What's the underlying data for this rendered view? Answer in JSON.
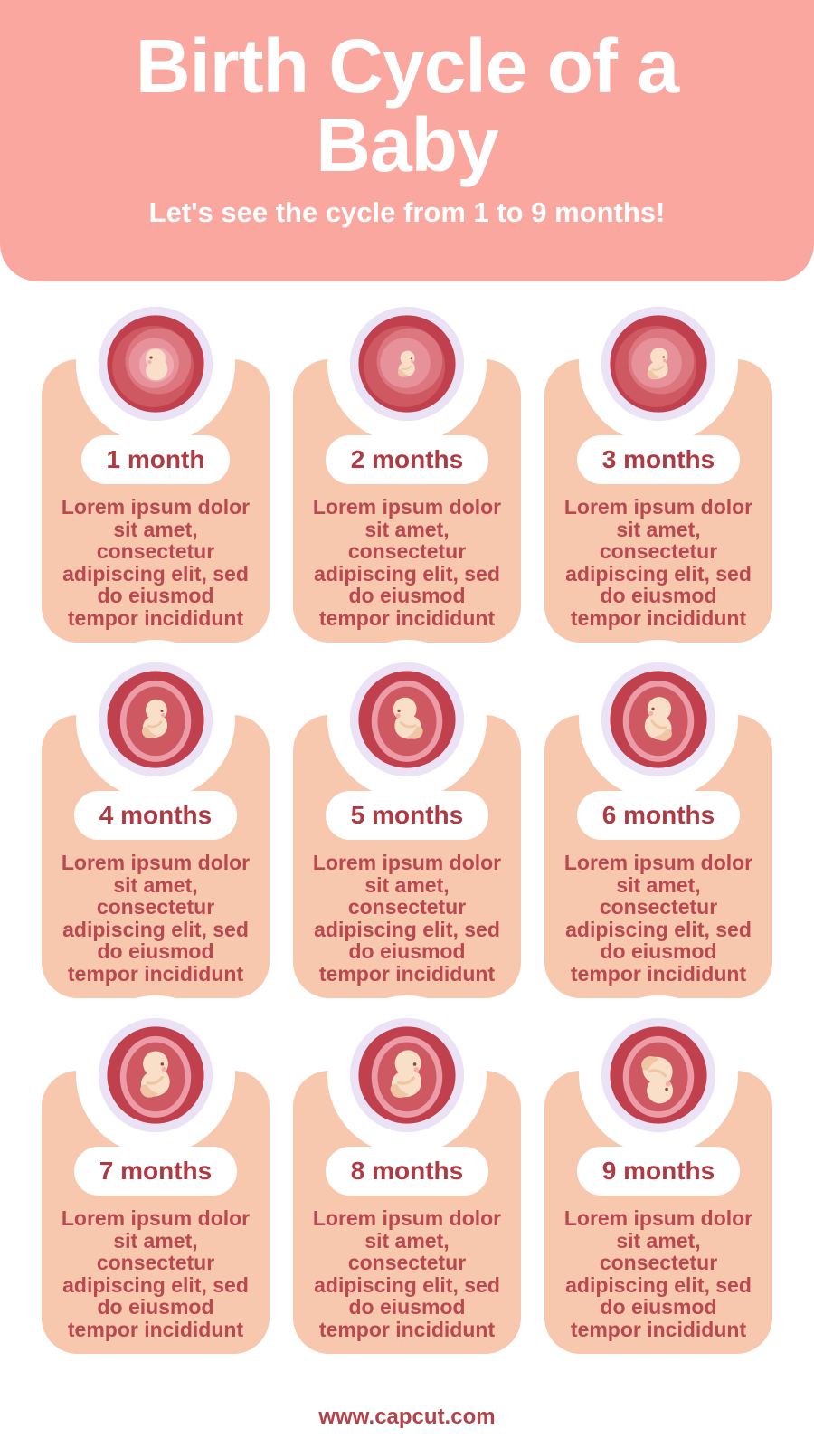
{
  "page": {
    "background_color": "#FFFFFF"
  },
  "header": {
    "title": "Birth Cycle of a Baby",
    "title_lines": [
      "Birth Cycle of a",
      "Baby"
    ],
    "subtitle": "Let's see the cycle from 1 to 9 months!",
    "background_color": "#FAA7A0",
    "text_color": "#FFFFFF"
  },
  "cards": [
    {
      "label": "1 month",
      "body_lines": [
        "Lorem ipsum dolor",
        "sit amet,",
        "consectetur",
        "adipiscing elit, sed",
        "do eiusmod",
        "tempor incididunt"
      ],
      "illustration": {
        "icon": "embryo-in-womb-icon",
        "fetus": "embryo",
        "womb": "swirl",
        "scale": 1.15,
        "flip": false,
        "rotate": 0
      }
    },
    {
      "label": "2 months",
      "body_lines": [
        "Lorem ipsum dolor",
        "sit amet,",
        "consectetur",
        "adipiscing elit, sed",
        "do eiusmod",
        "tempor incididunt"
      ],
      "illustration": {
        "icon": "fetus-in-womb-icon",
        "fetus": "baby",
        "womb": "swirl",
        "scale": 0.62,
        "flip": true,
        "rotate": 0
      }
    },
    {
      "label": "3 months",
      "body_lines": [
        "Lorem ipsum dolor",
        "sit amet,",
        "consectetur",
        "adipiscing elit, sed",
        "do eiusmod",
        "tempor incididunt"
      ],
      "illustration": {
        "icon": "fetus-in-womb-icon",
        "fetus": "baby",
        "womb": "swirl",
        "scale": 0.75,
        "flip": true,
        "rotate": 0
      }
    },
    {
      "label": "4 months",
      "body_lines": [
        "Lorem ipsum dolor",
        "sit amet,",
        "consectetur",
        "adipiscing elit, sed",
        "do eiusmod",
        "tempor incididunt"
      ],
      "illustration": {
        "icon": "fetus-in-womb-icon",
        "fetus": "baby",
        "womb": "sac",
        "scale": 0.92,
        "flip": true,
        "rotate": 0
      }
    },
    {
      "label": "5 months",
      "body_lines": [
        "Lorem ipsum dolor",
        "sit amet,",
        "consectetur",
        "adipiscing elit, sed",
        "do eiusmod",
        "tempor incididunt"
      ],
      "illustration": {
        "icon": "fetus-in-womb-icon",
        "fetus": "baby",
        "womb": "sac",
        "scale": 1.0,
        "flip": false,
        "rotate": -6
      }
    },
    {
      "label": "6 months",
      "body_lines": [
        "Lorem ipsum dolor",
        "sit amet,",
        "consectetur",
        "adipiscing elit, sed",
        "do eiusmod",
        "tempor incididunt"
      ],
      "illustration": {
        "icon": "fetus-in-womb-icon",
        "fetus": "baby",
        "womb": "sac",
        "scale": 1.02,
        "flip": false,
        "rotate": 8
      }
    },
    {
      "label": "7 months",
      "body_lines": [
        "Lorem ipsum dolor",
        "sit amet,",
        "consectetur",
        "adipiscing elit, sed",
        "do eiusmod",
        "tempor incididunt"
      ],
      "illustration": {
        "icon": "fetus-in-womb-icon",
        "fetus": "baby",
        "womb": "sac",
        "scale": 1.08,
        "flip": true,
        "rotate": -4
      }
    },
    {
      "label": "8 months",
      "body_lines": [
        "Lorem ipsum dolor",
        "sit amet,",
        "consectetur",
        "adipiscing elit, sed",
        "do eiusmod",
        "tempor incididunt"
      ],
      "illustration": {
        "icon": "fetus-in-womb-icon",
        "fetus": "baby",
        "womb": "sac",
        "scale": 1.12,
        "flip": true,
        "rotate": 0
      }
    },
    {
      "label": "9 months",
      "body_lines": [
        "Lorem ipsum dolor",
        "sit amet,",
        "consectetur",
        "adipiscing elit, sed",
        "do eiusmod",
        "tempor incididunt"
      ],
      "illustration": {
        "icon": "fetus-in-womb-icon",
        "fetus": "baby",
        "womb": "sac",
        "scale": 1.12,
        "flip": false,
        "rotate": 178
      }
    }
  ],
  "footer": {
    "url": "www.capcut.com"
  },
  "colors": {
    "header_background": "#FAA7A0",
    "card_background": "#F7C7AE",
    "badge_background": "#FFFFFF",
    "badge_text": "#AE3A43",
    "body_text": "#B94850",
    "footer_text": "#B4424A",
    "illustration": {
      "halo": "#ECE2F5",
      "womb": "#C0414D",
      "swirl_1": "#CF5963",
      "swirl_2": "#DC767F",
      "swirl_3": "#E7929B",
      "swirl_4": "#F0A9B0",
      "sac_rim": "#EC9CA6",
      "skin": "#F9DFC8",
      "skin_shade": "#EFC6A3",
      "eye": "#8C4A42",
      "cheek": "#F3AFAC"
    }
  }
}
